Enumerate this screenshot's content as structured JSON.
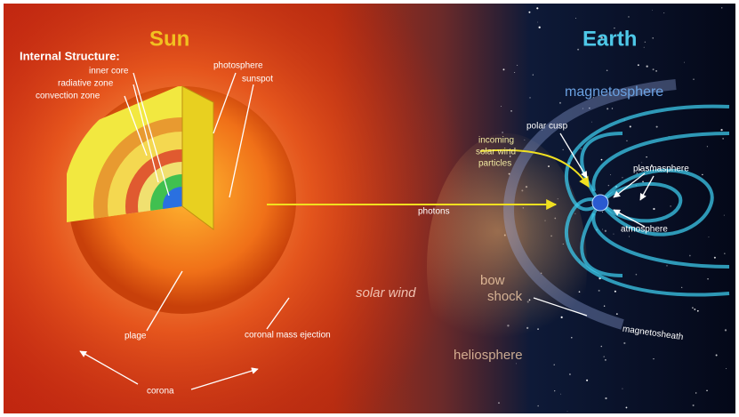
{
  "title": {
    "sun": "Sun",
    "earth": "Earth"
  },
  "sun_labels": {
    "internal_structure": "Internal Structure:",
    "inner_core": "inner core",
    "radiative_zone": "radiative zone",
    "convection_zone": "convection zone",
    "photosphere": "photosphere",
    "sunspot": "sunspot",
    "plage": "plage",
    "coronal_mass_ejection": "coronal mass ejection",
    "corona": "corona"
  },
  "space_labels": {
    "photons": "photons",
    "solar_wind": "solar wind",
    "heliosphere": "heliosphere",
    "bow_shock": [
      "bow",
      "shock"
    ]
  },
  "earth_labels": {
    "magnetosphere": "magnetosphere",
    "polar_cusp": "polar cusp",
    "incoming": [
      "incoming",
      "solar wind",
      "particles"
    ],
    "plasmasphere": "plasmasphere",
    "atmosphere": "atmosphere",
    "magnetosheath": "magnetosheath"
  }
}
